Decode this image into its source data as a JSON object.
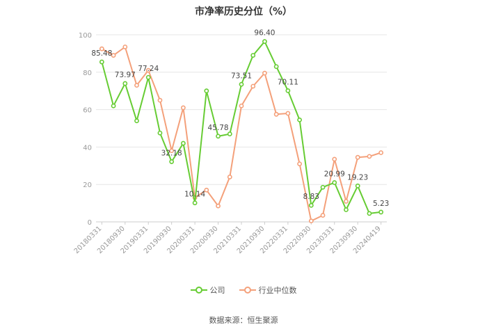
{
  "title": "市净率历史分位（%）",
  "source": "数据来源：恒生聚源",
  "colors": {
    "company": "#66cc33",
    "industry": "#f4a07a",
    "grid": "#e6e6e6",
    "axis": "#999999",
    "label": "#444444"
  },
  "chart_data": {
    "type": "line",
    "title": "市净率历史分位（%）",
    "ylim": [
      0,
      100
    ],
    "yticks": [
      "0",
      "20",
      "40",
      "60",
      "80",
      "100"
    ],
    "grid": true,
    "legend_position": "bottom",
    "x_tick_labels": [
      "20180331",
      "20180930",
      "20190331",
      "20190930",
      "20200331",
      "20200930",
      "20210331",
      "20210930",
      "20220331",
      "20220930",
      "20230331",
      "20230930",
      "20240419"
    ],
    "x_tick_indices": [
      0,
      2,
      4,
      6,
      8,
      10,
      12,
      14,
      16,
      18,
      20,
      22,
      24
    ],
    "series": [
      {
        "name": "公司",
        "color": "#66cc33",
        "values": [
          85.48,
          62,
          73.97,
          54,
          77.24,
          47.5,
          32.18,
          42,
          10.14,
          70,
          45.78,
          47,
          73.51,
          89,
          96.4,
          83,
          70.11,
          54.5,
          8.83,
          18.5,
          20.99,
          6.5,
          19.23,
          4.5,
          5.23
        ],
        "labels": {
          "0": "85.48",
          "2": "73.97",
          "4": "77.24",
          "6": "32.18",
          "8": "10.14",
          "10": "45.78",
          "12": "73.51",
          "14": "96.40",
          "16": "70.11",
          "18": "8.83",
          "20": "20.99",
          "22": "19.23",
          "24": "5.23"
        }
      },
      {
        "name": "行业中位数",
        "color": "#f4a07a",
        "values": [
          92.5,
          89,
          93.5,
          73,
          81,
          65,
          38,
          61,
          13,
          17,
          8.5,
          24,
          62,
          72.5,
          79.5,
          57.5,
          58,
          31,
          0.5,
          3.5,
          33.5,
          11,
          34.5,
          35,
          37
        ]
      }
    ]
  }
}
